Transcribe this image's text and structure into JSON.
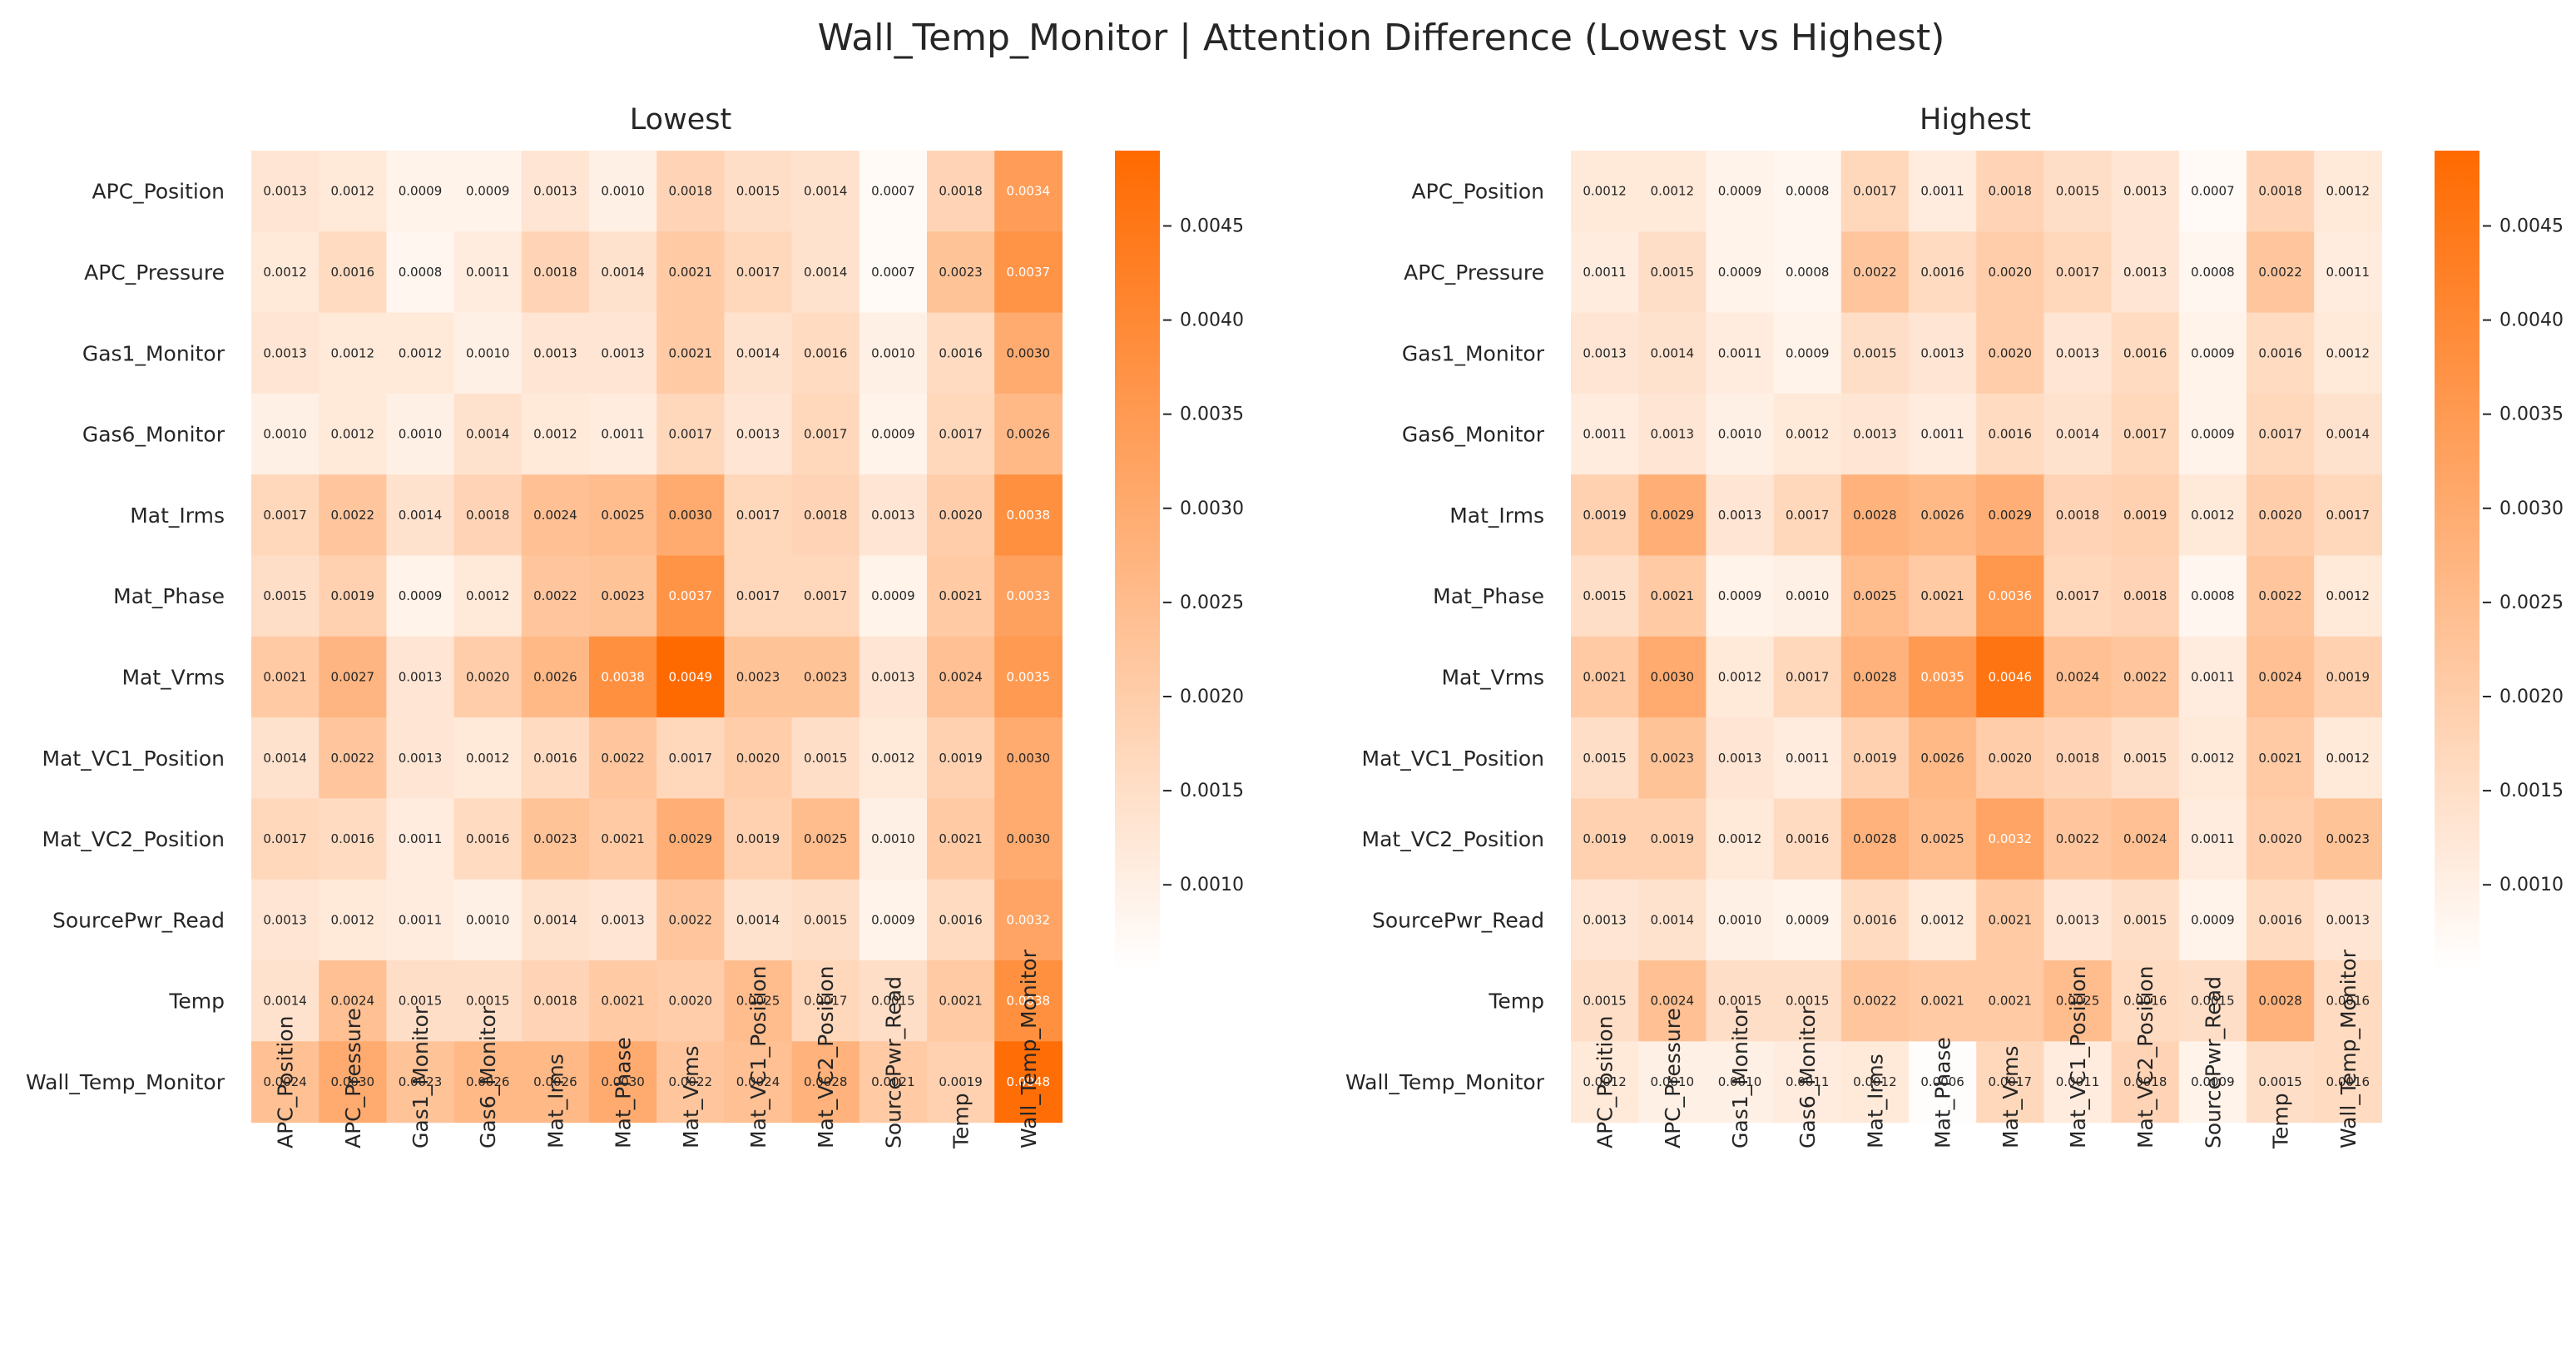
{
  "figure": {
    "title": "Wall_Temp_Monitor | Attention Difference (Lowest vs Highest)"
  },
  "chart_data": [
    {
      "type": "heatmap",
      "title": "Lowest",
      "xlabel": "",
      "ylabel": "",
      "row_labels": [
        "APC_Position",
        "APC_Pressure",
        "Gas1_Monitor",
        "Gas6_Monitor",
        "Mat_Irms",
        "Mat_Phase",
        "Mat_Vrms",
        "Mat_VC1_Position",
        "Mat_VC2_Position",
        "SourcePwr_Read",
        "Temp",
        "Wall_Temp_Monitor"
      ],
      "col_labels": [
        "APC_Position",
        "APC_Pressure",
        "Gas1_Monitor",
        "Gas6_Monitor",
        "Mat_Irms",
        "Mat_Phase",
        "Mat_Vrms",
        "Mat_VC1_Position",
        "Mat_VC2_Position",
        "SourcePwr_Read",
        "Temp",
        "Wall_Temp_Monitor"
      ],
      "values": [
        [
          0.0013,
          0.0012,
          0.0009,
          0.0009,
          0.0013,
          0.001,
          0.0018,
          0.0015,
          0.0014,
          0.0007,
          0.0018,
          0.0034
        ],
        [
          0.0012,
          0.0016,
          0.0008,
          0.0011,
          0.0018,
          0.0014,
          0.0021,
          0.0017,
          0.0014,
          0.0007,
          0.0023,
          0.0037
        ],
        [
          0.0013,
          0.0012,
          0.0012,
          0.001,
          0.0013,
          0.0013,
          0.0021,
          0.0014,
          0.0016,
          0.001,
          0.0016,
          0.003
        ],
        [
          0.001,
          0.0012,
          0.001,
          0.0014,
          0.0012,
          0.0011,
          0.0017,
          0.0013,
          0.0017,
          0.0009,
          0.0017,
          0.0026
        ],
        [
          0.0017,
          0.0022,
          0.0014,
          0.0018,
          0.0024,
          0.0025,
          0.003,
          0.0017,
          0.0018,
          0.0013,
          0.002,
          0.0038
        ],
        [
          0.0015,
          0.0019,
          0.0009,
          0.0012,
          0.0022,
          0.0023,
          0.0037,
          0.0017,
          0.0017,
          0.0009,
          0.0021,
          0.0033
        ],
        [
          0.0021,
          0.0027,
          0.0013,
          0.002,
          0.0026,
          0.0038,
          0.0049,
          0.0023,
          0.0023,
          0.0013,
          0.0024,
          0.0035
        ],
        [
          0.0014,
          0.0022,
          0.0013,
          0.0012,
          0.0016,
          0.0022,
          0.0017,
          0.002,
          0.0015,
          0.0012,
          0.0019,
          0.003
        ],
        [
          0.0017,
          0.0016,
          0.0011,
          0.0016,
          0.0023,
          0.0021,
          0.0029,
          0.0019,
          0.0025,
          0.001,
          0.0021,
          0.003
        ],
        [
          0.0013,
          0.0012,
          0.0011,
          0.001,
          0.0014,
          0.0013,
          0.0022,
          0.0014,
          0.0015,
          0.0009,
          0.0016,
          0.0032
        ],
        [
          0.0014,
          0.0024,
          0.0015,
          0.0015,
          0.0018,
          0.0021,
          0.002,
          0.0025,
          0.0017,
          0.0015,
          0.0021,
          0.0038
        ],
        [
          0.0024,
          0.003,
          0.0023,
          0.0026,
          0.0026,
          0.003,
          0.0022,
          0.0024,
          0.0028,
          0.0021,
          0.0019,
          0.0048
        ]
      ],
      "color_range": [
        0.00055,
        0.0049
      ],
      "colorbar_ticks": [
        "0.0010",
        "0.0015",
        "0.0020",
        "0.0025",
        "0.0030",
        "0.0035",
        "0.0040",
        "0.0045"
      ],
      "colormap": [
        "#ffffff",
        "#ff6a00"
      ]
    },
    {
      "type": "heatmap",
      "title": "Highest",
      "xlabel": "",
      "ylabel": "",
      "row_labels": [
        "APC_Position",
        "APC_Pressure",
        "Gas1_Monitor",
        "Gas6_Monitor",
        "Mat_Irms",
        "Mat_Phase",
        "Mat_Vrms",
        "Mat_VC1_Position",
        "Mat_VC2_Position",
        "SourcePwr_Read",
        "Temp",
        "Wall_Temp_Monitor"
      ],
      "col_labels": [
        "APC_Position",
        "APC_Pressure",
        "Gas1_Monitor",
        "Gas6_Monitor",
        "Mat_Irms",
        "Mat_Phase",
        "Mat_Vrms",
        "Mat_VC1_Position",
        "Mat_VC2_Position",
        "SourcePwr_Read",
        "Temp",
        "Wall_Temp_Monitor"
      ],
      "values": [
        [
          0.0012,
          0.0012,
          0.0009,
          0.0008,
          0.0017,
          0.0011,
          0.0018,
          0.0015,
          0.0013,
          0.0007,
          0.0018,
          0.0012
        ],
        [
          0.0011,
          0.0015,
          0.0009,
          0.0008,
          0.0022,
          0.0016,
          0.002,
          0.0017,
          0.0013,
          0.0008,
          0.0022,
          0.0011
        ],
        [
          0.0013,
          0.0014,
          0.0011,
          0.0009,
          0.0015,
          0.0013,
          0.002,
          0.0013,
          0.0016,
          0.0009,
          0.0016,
          0.0012
        ],
        [
          0.0011,
          0.0013,
          0.001,
          0.0012,
          0.0013,
          0.0011,
          0.0016,
          0.0014,
          0.0017,
          0.0009,
          0.0017,
          0.0014
        ],
        [
          0.0019,
          0.0029,
          0.0013,
          0.0017,
          0.0028,
          0.0026,
          0.0029,
          0.0018,
          0.0019,
          0.0012,
          0.002,
          0.0017
        ],
        [
          0.0015,
          0.0021,
          0.0009,
          0.001,
          0.0025,
          0.0021,
          0.0036,
          0.0017,
          0.0018,
          0.0008,
          0.0022,
          0.0012
        ],
        [
          0.0021,
          0.003,
          0.0012,
          0.0017,
          0.0028,
          0.0035,
          0.0046,
          0.0024,
          0.0022,
          0.0011,
          0.0024,
          0.0019
        ],
        [
          0.0015,
          0.0023,
          0.0013,
          0.0011,
          0.0019,
          0.0026,
          0.002,
          0.0018,
          0.0015,
          0.0012,
          0.0021,
          0.0012
        ],
        [
          0.0019,
          0.0019,
          0.0012,
          0.0016,
          0.0028,
          0.0025,
          0.0032,
          0.0022,
          0.0024,
          0.0011,
          0.002,
          0.0023
        ],
        [
          0.0013,
          0.0014,
          0.001,
          0.0009,
          0.0016,
          0.0012,
          0.0021,
          0.0013,
          0.0015,
          0.0009,
          0.0016,
          0.0013
        ],
        [
          0.0015,
          0.0024,
          0.0015,
          0.0015,
          0.0022,
          0.0021,
          0.0021,
          0.0025,
          0.0016,
          0.0015,
          0.0028,
          0.0016
        ],
        [
          0.0012,
          0.001,
          0.001,
          0.0011,
          0.0012,
          0.0006,
          0.0017,
          0.0011,
          0.0018,
          0.0009,
          0.0015,
          0.0016
        ]
      ],
      "color_range": [
        0.00055,
        0.0049
      ],
      "colorbar_ticks": [
        "0.0010",
        "0.0015",
        "0.0020",
        "0.0025",
        "0.0030",
        "0.0035",
        "0.0040",
        "0.0045"
      ],
      "colormap": [
        "#ffffff",
        "#ff6a00"
      ]
    }
  ]
}
